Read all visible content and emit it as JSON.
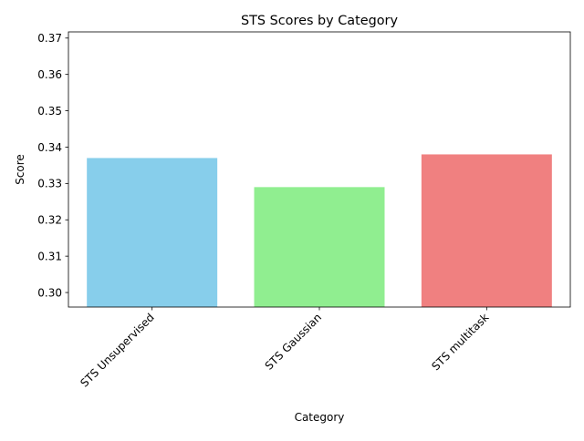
{
  "chart_data": {
    "type": "bar",
    "title": "STS Scores by Category",
    "xlabel": "Category",
    "ylabel": "Score",
    "categories": [
      "STS Unsupervised",
      "STS Gaussian",
      "STS multitask"
    ],
    "values": [
      0.337,
      0.329,
      0.338
    ],
    "colors": [
      "#87ceeb",
      "#90ee90",
      "#f08080"
    ],
    "ylim": [
      0.296,
      0.3717
    ],
    "yticks": [
      0.3,
      0.31,
      0.32,
      0.33,
      0.34,
      0.35,
      0.36,
      0.37
    ],
    "ytick_labels": [
      "0.30",
      "0.31",
      "0.32",
      "0.33",
      "0.34",
      "0.35",
      "0.36",
      "0.37"
    ],
    "grid": false,
    "legend": "none",
    "xtick_rotation_deg": 45
  }
}
